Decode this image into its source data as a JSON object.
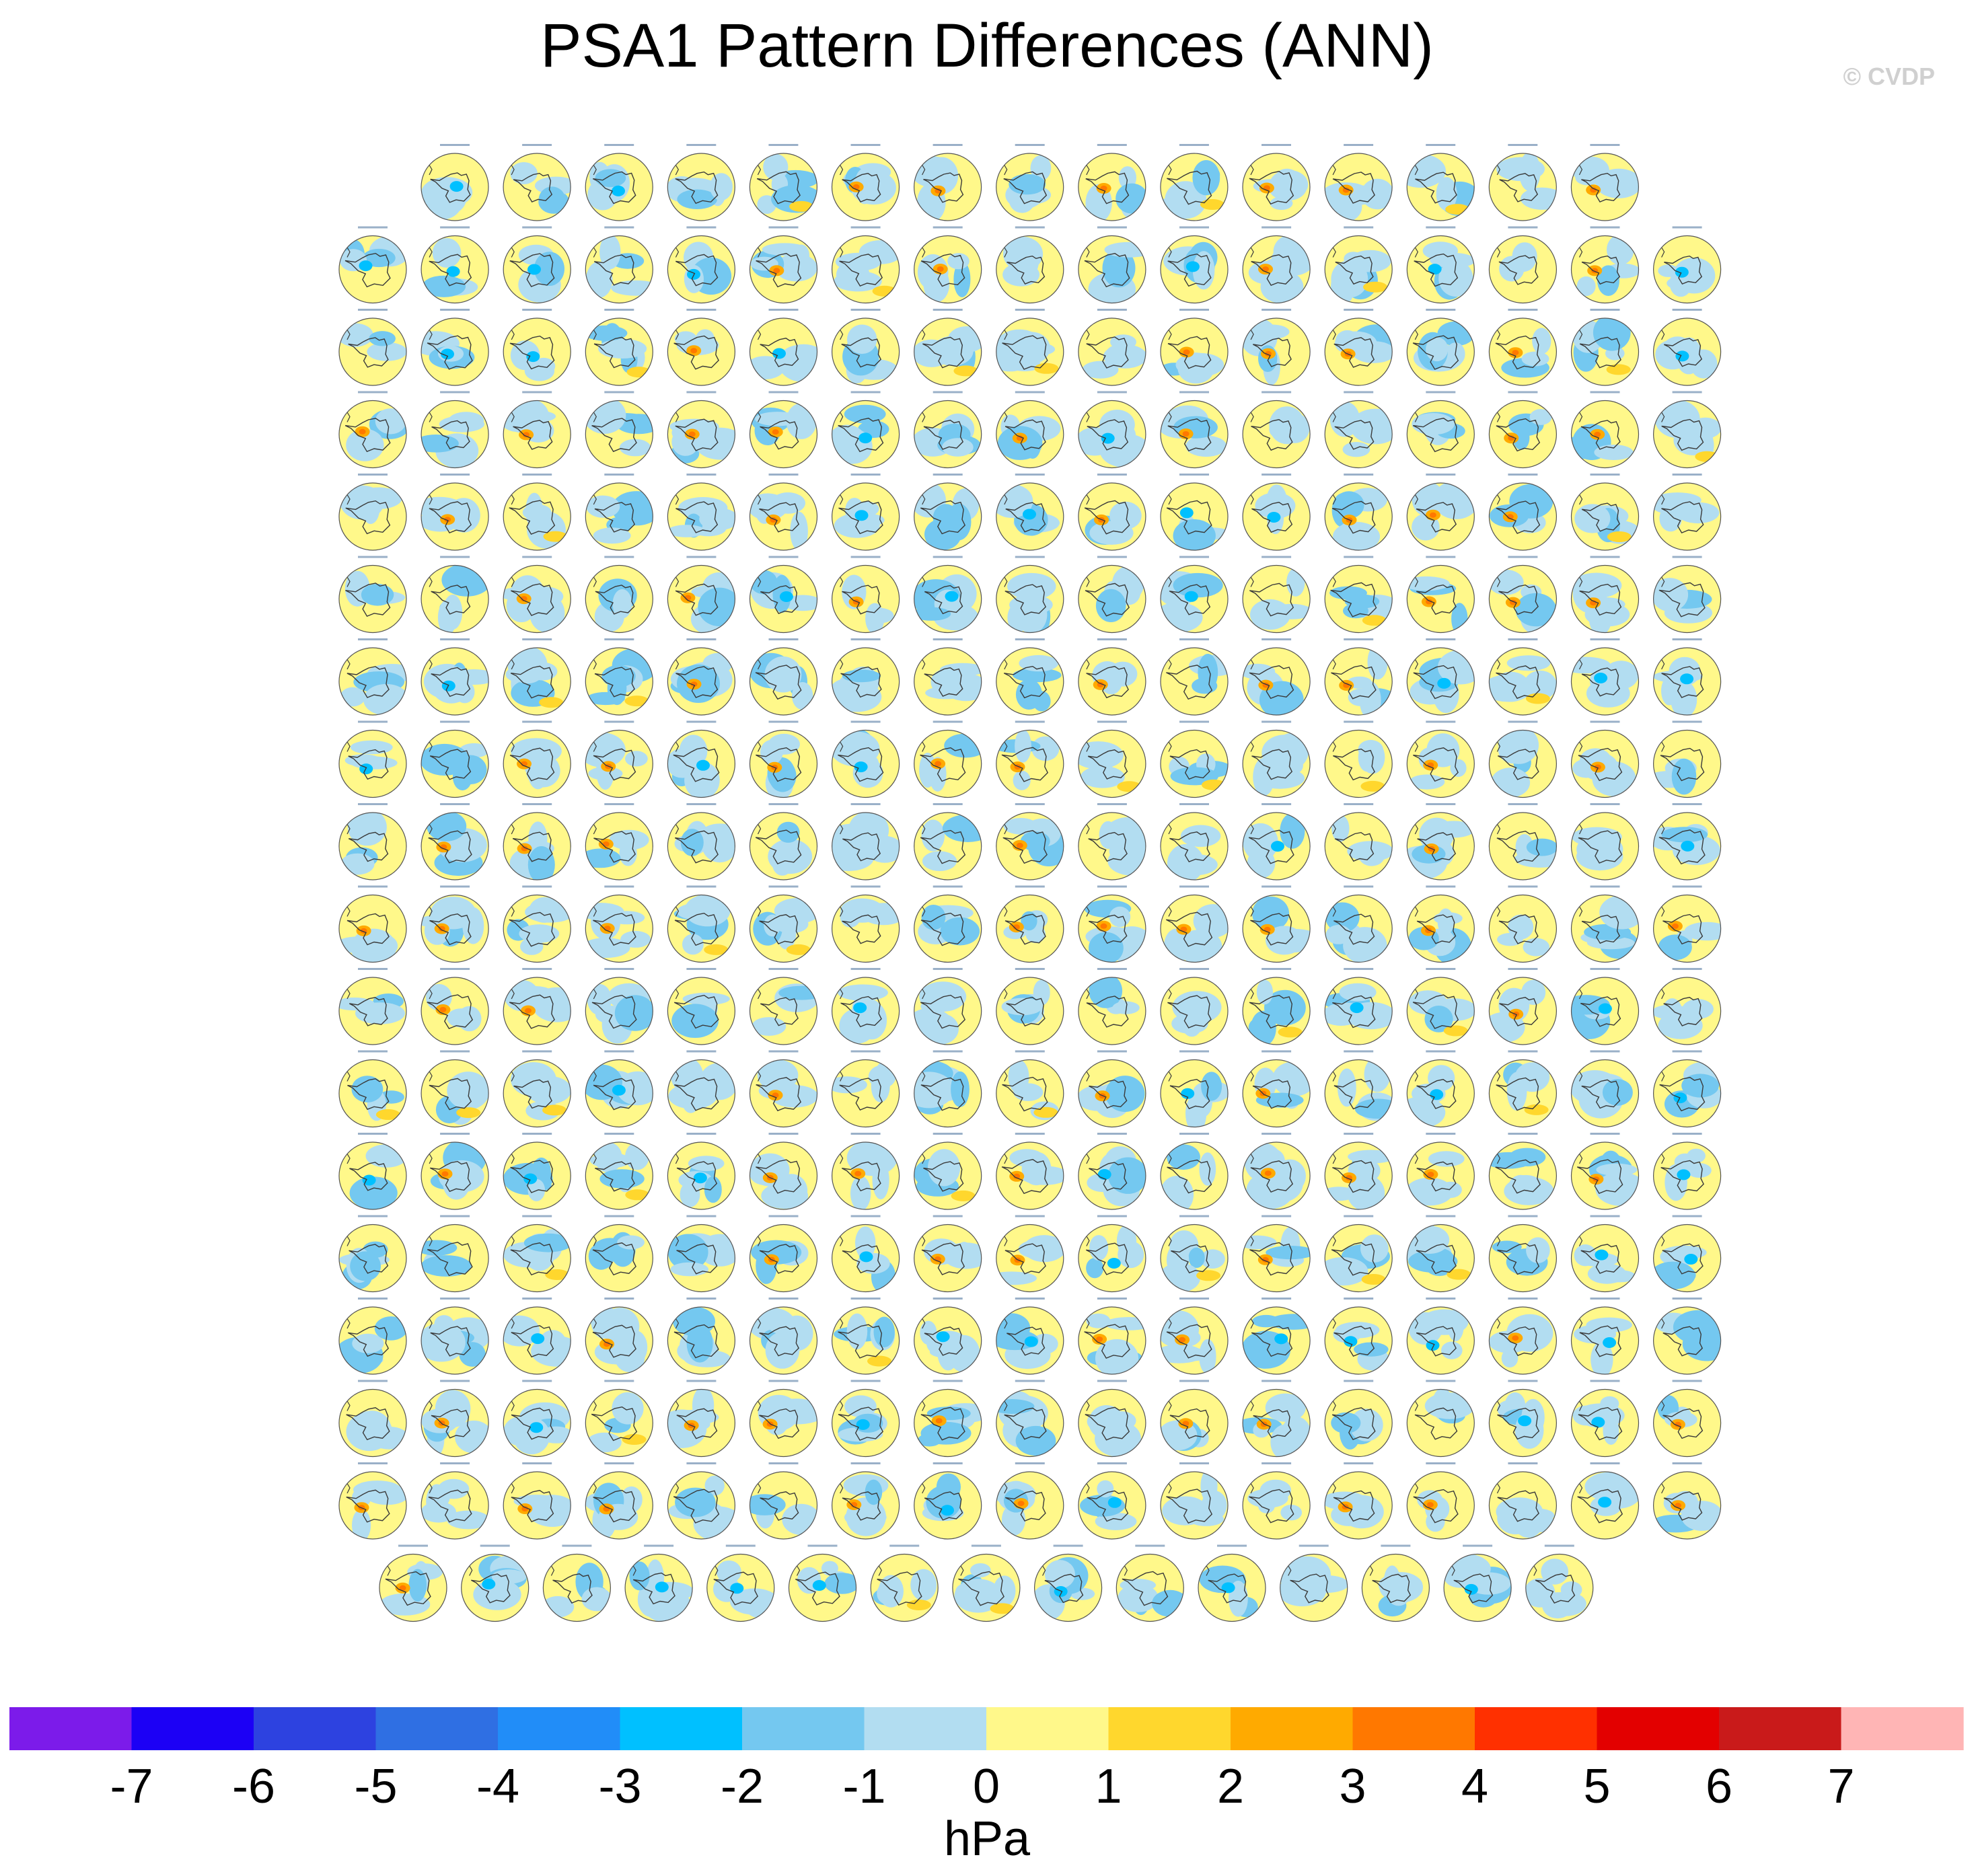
{
  "title": "PSA1 Pattern Differences (ANN)",
  "watermark": "© CVDP",
  "chart_data": {
    "type": "heatmap",
    "description_of_panels": "grid of small polar-stereographic Southern Hemisphere maps",
    "grid": {
      "rows": [
        15,
        17,
        17,
        17,
        17,
        17,
        17,
        17,
        17,
        17,
        17,
        17,
        17,
        17,
        17,
        17,
        17,
        15
      ]
    },
    "colorbar": {
      "unit_label": "hPa",
      "tick_labels": [
        "-7",
        "-6",
        "-5",
        "-4",
        "-3",
        "-2",
        "-1",
        "0",
        "1",
        "2",
        "3",
        "4",
        "5",
        "6",
        "7"
      ],
      "bins": [
        "#7c1bea",
        "#1c00f5",
        "#2d42e0",
        "#2f6fe3",
        "#218df8",
        "#00c0ff",
        "#74c8f0",
        "#b2ddf1",
        "#fff88a",
        "#ffd72d",
        "#ffaa00",
        "#ff7800",
        "#ff3000",
        "#e30000",
        "#c91a1a",
        "#ffb5b5"
      ]
    },
    "colors": {
      "land_outline": "#3a3a3a",
      "panel_border": "#555555"
    }
  }
}
